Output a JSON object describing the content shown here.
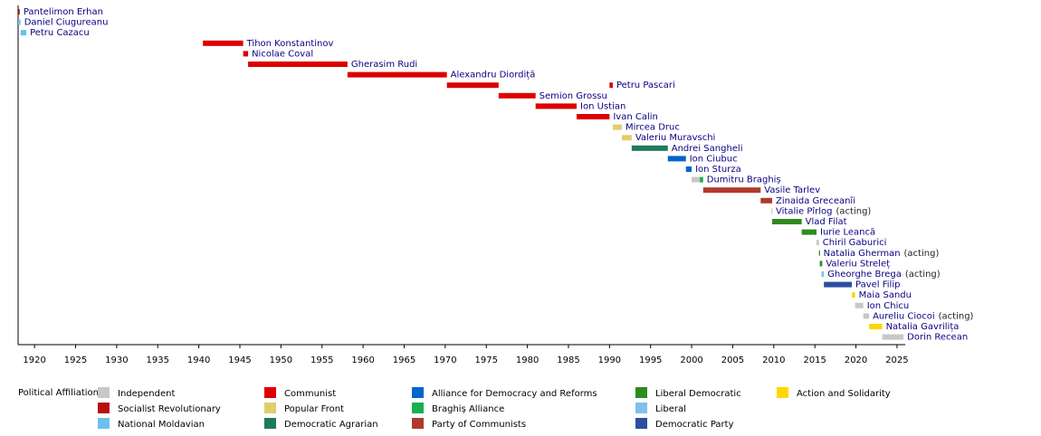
{
  "chart_data": {
    "type": "timeline",
    "legend_title": "Political Affiliation:",
    "parties": [
      {
        "name": "Independent",
        "color": "#c8c8c8"
      },
      {
        "name": "Socialist Revolutionary",
        "color": "#b5120f"
      },
      {
        "name": "National Moldavian",
        "color": "#6cc0f0"
      },
      {
        "name": "Communist",
        "color": "#dd0000"
      },
      {
        "name": "Popular Front",
        "color": "#e2cd6d"
      },
      {
        "name": "Democratic Agrarian",
        "color": "#1f7a5a"
      },
      {
        "name": "Alliance for Democracy and Reforms",
        "color": "#0066cc"
      },
      {
        "name": "Braghiș Alliance",
        "color": "#18b050"
      },
      {
        "name": "Party of Communists",
        "color": "#b03a2e"
      },
      {
        "name": "Liberal Democratic",
        "color": "#2e8b1e"
      },
      {
        "name": "Liberal",
        "color": "#80c0ee"
      },
      {
        "name": "Democratic Party",
        "color": "#2a4f9e"
      },
      {
        "name": "Action and Solidarity",
        "color": "#ffd700"
      }
    ],
    "rows": [
      {
        "name": "Pantelimon Erhan",
        "spans": [
          {
            "start": 1918.0,
            "end": 1918.2,
            "party": 1
          }
        ]
      },
      {
        "name": "Daniel Ciugureanu",
        "spans": [
          {
            "start": 1918.0,
            "end": 1918.3,
            "party": 2
          }
        ]
      },
      {
        "name": "Petru Cazacu",
        "spans": [
          {
            "start": 1918.3,
            "end": 1919.0,
            "party": 2
          }
        ]
      },
      {
        "name": "Tihon Konstantinov",
        "spans": [
          {
            "start": 1940.5,
            "end": 1945.4,
            "party": 3
          }
        ]
      },
      {
        "name": "Nicolae Coval",
        "spans": [
          {
            "start": 1945.4,
            "end": 1946.0,
            "party": 3
          }
        ]
      },
      {
        "name": "Gherasim Rudi",
        "spans": [
          {
            "start": 1946.0,
            "end": 1958.1,
            "party": 3
          }
        ]
      },
      {
        "name": "Alexandru Diordiță",
        "spans": [
          {
            "start": 1958.1,
            "end": 1970.2,
            "party": 3
          }
        ]
      },
      {
        "name": "Petru Pascari",
        "spans": [
          {
            "start": 1970.2,
            "end": 1976.5,
            "party": 3
          },
          {
            "start": 1990.0,
            "end": 1990.4,
            "party": 3
          }
        ]
      },
      {
        "name": "Semion Grossu",
        "spans": [
          {
            "start": 1976.5,
            "end": 1981.0,
            "party": 3
          }
        ]
      },
      {
        "name": "Ion Ustian",
        "spans": [
          {
            "start": 1981.0,
            "end": 1986.0,
            "party": 3
          }
        ]
      },
      {
        "name": "Ivan Calin",
        "spans": [
          {
            "start": 1986.0,
            "end": 1990.0,
            "party": 3
          }
        ]
      },
      {
        "name": "Mircea Druc",
        "spans": [
          {
            "start": 1990.4,
            "end": 1991.5,
            "party": 4
          }
        ]
      },
      {
        "name": "Valeriu Muravschi",
        "spans": [
          {
            "start": 1991.5,
            "end": 1992.7,
            "party": 4
          }
        ]
      },
      {
        "name": "Andrei Sangheli",
        "spans": [
          {
            "start": 1992.7,
            "end": 1997.1,
            "party": 5
          }
        ]
      },
      {
        "name": "Ion Ciubuc",
        "spans": [
          {
            "start": 1997.1,
            "end": 1999.3,
            "party": 6
          }
        ]
      },
      {
        "name": "Ion Sturza",
        "spans": [
          {
            "start": 1999.3,
            "end": 2000.0,
            "party": 6
          }
        ]
      },
      {
        "name": "Dumitru Braghiș",
        "spans": [
          {
            "start": 2000.0,
            "end": 2001.0,
            "party": 0
          },
          {
            "start": 2001.0,
            "end": 2001.4,
            "party": 7
          }
        ]
      },
      {
        "name": "Vasile Tarlev",
        "spans": [
          {
            "start": 2001.4,
            "end": 2008.4,
            "party": 8
          }
        ]
      },
      {
        "name": "Zinaida Greceanîi",
        "spans": [
          {
            "start": 2008.4,
            "end": 2009.8,
            "party": 8
          }
        ]
      },
      {
        "name": "Vitalie Pîrlog",
        "note": "(acting)",
        "spans": [
          {
            "start": 2009.7,
            "end": 2009.8,
            "party": 0
          }
        ]
      },
      {
        "name": "Vlad Filat",
        "spans": [
          {
            "start": 2009.8,
            "end": 2013.4,
            "party": 9
          }
        ]
      },
      {
        "name": "Iurie Leancă",
        "spans": [
          {
            "start": 2013.4,
            "end": 2015.2,
            "party": 9
          }
        ]
      },
      {
        "name": "Chiril Gaburici",
        "spans": [
          {
            "start": 2015.2,
            "end": 2015.5,
            "party": 0
          }
        ]
      },
      {
        "name": "Natalia Gherman",
        "note": "(acting)",
        "spans": [
          {
            "start": 2015.5,
            "end": 2015.6,
            "party": 9
          }
        ]
      },
      {
        "name": "Valeriu Streleț",
        "spans": [
          {
            "start": 2015.6,
            "end": 2015.9,
            "party": 9
          }
        ]
      },
      {
        "name": "Gheorghe Brega",
        "note": "(acting)",
        "spans": [
          {
            "start": 2015.8,
            "end": 2016.1,
            "party": 10
          }
        ]
      },
      {
        "name": "Pavel Filip",
        "spans": [
          {
            "start": 2016.1,
            "end": 2019.5,
            "party": 11
          }
        ]
      },
      {
        "name": "Maia Sandu",
        "spans": [
          {
            "start": 2019.5,
            "end": 2019.9,
            "party": 12
          }
        ]
      },
      {
        "name": "Ion Chicu",
        "spans": [
          {
            "start": 2019.9,
            "end": 2020.9,
            "party": 0
          }
        ]
      },
      {
        "name": "Aureliu Ciocoi",
        "note": "(acting)",
        "spans": [
          {
            "start": 2020.9,
            "end": 2021.6,
            "party": 0
          }
        ]
      },
      {
        "name": "Natalia Gavrilița",
        "spans": [
          {
            "start": 2021.6,
            "end": 2023.2,
            "party": 12
          }
        ]
      },
      {
        "name": "Dorin Recean",
        "spans": [
          {
            "start": 2023.2,
            "end": 2025.8,
            "party": 0
          }
        ]
      }
    ],
    "xlim": [
      1918,
      2026
    ],
    "xticks": [
      1920,
      1925,
      1930,
      1935,
      1940,
      1945,
      1950,
      1955,
      1960,
      1965,
      1970,
      1975,
      1980,
      1985,
      1990,
      1995,
      2000,
      2005,
      2010,
      2015,
      2020,
      2025
    ]
  }
}
